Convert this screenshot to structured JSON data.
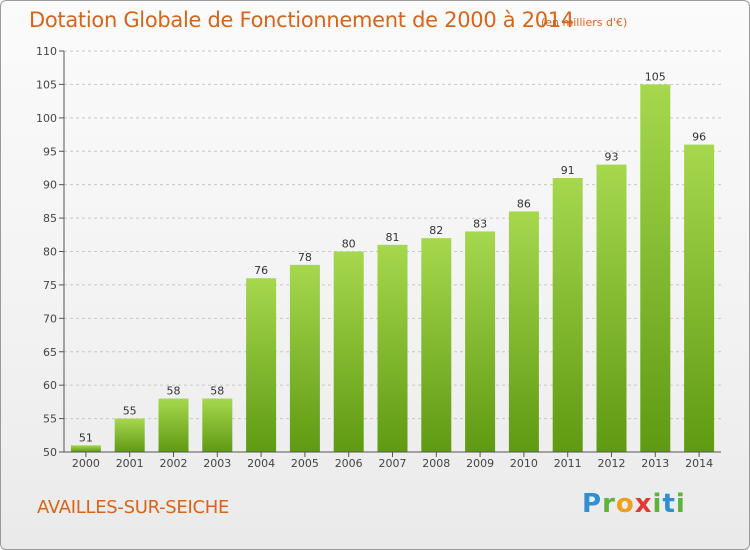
{
  "header": {
    "title": "Dotation Globale de Fonctionnement de 2000 à 2014",
    "subtitle": "(en milliers d'€)"
  },
  "footer": {
    "commune": "AVAILLES-SUR-SEICHE",
    "logo": {
      "p": "P",
      "r": "r",
      "o": "o",
      "x": "x",
      "i": "i",
      "t": "t",
      "i2": "i"
    }
  },
  "colors": {
    "bar_light": "#a6d84e",
    "bar_dark": "#5f9a12",
    "title": "#d96418",
    "axis": "#555555",
    "grid": "#c8c8c8"
  },
  "chart_data": {
    "type": "bar",
    "categories": [
      "2000",
      "2001",
      "2002",
      "2003",
      "2004",
      "2005",
      "2006",
      "2007",
      "2008",
      "2009",
      "2010",
      "2011",
      "2012",
      "2013",
      "2014"
    ],
    "values": [
      51,
      55,
      58,
      58,
      76,
      78,
      80,
      81,
      82,
      83,
      86,
      91,
      93,
      105,
      96
    ],
    "data_labels": [
      "51",
      "55",
      "58",
      "58",
      "76",
      "78",
      "80",
      "81",
      "82",
      "83",
      "86",
      "91",
      "93",
      "105",
      "96"
    ],
    "ylim": [
      50,
      110
    ],
    "yticks": [
      50,
      55,
      60,
      65,
      70,
      75,
      80,
      85,
      90,
      95,
      100,
      105,
      110
    ],
    "grid": true,
    "legend": "none"
  }
}
